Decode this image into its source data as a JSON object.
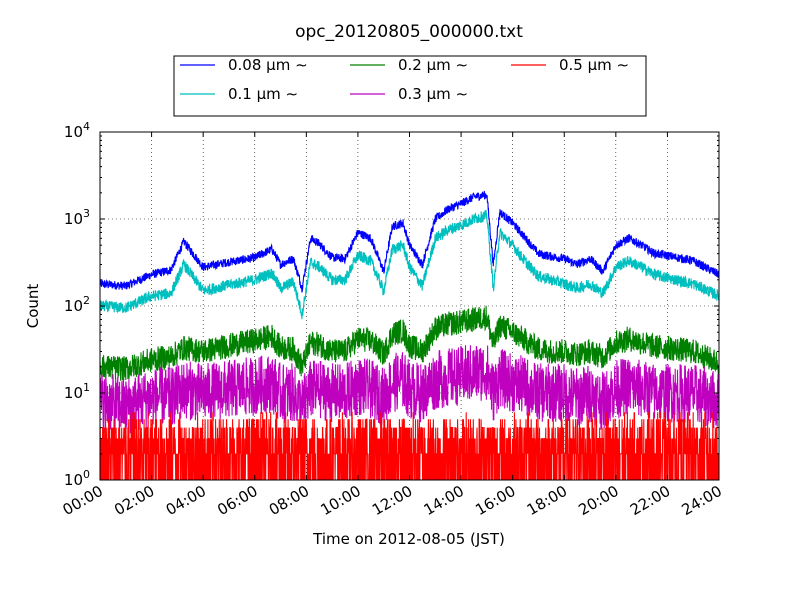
{
  "chart_data": {
    "type": "line",
    "title": "opc_20120805_000000.txt",
    "xlabel": "Time on 2012-08-05 (JST)",
    "ylabel": "Count",
    "yscale": "log",
    "ylim": [
      1,
      10000
    ],
    "xlim": [
      "00:00",
      "24:00"
    ],
    "x_ticks": [
      "00:00",
      "02:00",
      "04:00",
      "06:00",
      "08:00",
      "10:00",
      "12:00",
      "14:00",
      "16:00",
      "18:00",
      "20:00",
      "22:00",
      "24:00"
    ],
    "y_ticks": [
      {
        "base": "10",
        "exp": "0"
      },
      {
        "base": "10",
        "exp": "1"
      },
      {
        "base": "10",
        "exp": "2"
      },
      {
        "base": "10",
        "exp": "3"
      },
      {
        "base": "10",
        "exp": "4"
      }
    ],
    "grid": true,
    "legend_position": "top-center",
    "series": [
      {
        "name": "0.08 μm ∼",
        "color": "#0000ff",
        "x": [
          "00:00",
          "01:00",
          "02:00",
          "02:45",
          "03:15",
          "04:00",
          "05:00",
          "06:00",
          "06:40",
          "07:00",
          "07:30",
          "07:50",
          "08:10",
          "08:30",
          "09:00",
          "09:30",
          "10:00",
          "10:30",
          "11:00",
          "11:20",
          "11:45",
          "12:00",
          "12:30",
          "13:00",
          "13:30",
          "14:00",
          "14:30",
          "15:00",
          "15:15",
          "15:30",
          "16:00",
          "16:30",
          "17:00",
          "17:30",
          "18:00",
          "18:30",
          "19:00",
          "19:30",
          "20:00",
          "20:30",
          "21:00",
          "21:30",
          "22:00",
          "23:00",
          "24:00"
        ],
        "values": [
          180,
          170,
          230,
          260,
          550,
          280,
          320,
          360,
          450,
          300,
          350,
          160,
          600,
          520,
          360,
          350,
          700,
          600,
          250,
          820,
          900,
          500,
          300,
          1000,
          1300,
          1500,
          1800,
          1900,
          300,
          1200,
          900,
          600,
          400,
          370,
          350,
          300,
          350,
          250,
          500,
          600,
          500,
          400,
          380,
          330,
          230
        ]
      },
      {
        "name": "0.1 μm ∼",
        "color": "#00bfbf",
        "x": [
          "00:00",
          "01:00",
          "02:00",
          "02:45",
          "03:15",
          "04:00",
          "05:00",
          "06:00",
          "06:40",
          "07:00",
          "07:30",
          "07:50",
          "08:10",
          "08:30",
          "09:00",
          "09:30",
          "10:00",
          "10:30",
          "11:00",
          "11:20",
          "11:45",
          "12:00",
          "12:30",
          "13:00",
          "13:30",
          "14:00",
          "14:30",
          "15:00",
          "15:15",
          "15:30",
          "16:00",
          "16:30",
          "17:00",
          "17:30",
          "18:00",
          "18:30",
          "19:00",
          "19:30",
          "20:00",
          "20:30",
          "21:00",
          "21:30",
          "22:00",
          "23:00",
          "24:00"
        ],
        "values": [
          100,
          95,
          130,
          140,
          300,
          150,
          175,
          200,
          240,
          160,
          190,
          80,
          320,
          280,
          200,
          200,
          380,
          330,
          150,
          450,
          500,
          280,
          170,
          600,
          750,
          850,
          1000,
          1100,
          160,
          700,
          500,
          320,
          220,
          200,
          180,
          160,
          180,
          140,
          280,
          330,
          280,
          230,
          210,
          180,
          130
        ]
      },
      {
        "name": "0.2 μm ∼",
        "color": "#008000",
        "x": [
          "00:00",
          "01:00",
          "02:00",
          "02:45",
          "03:15",
          "04:00",
          "05:00",
          "06:00",
          "06:40",
          "07:00",
          "07:30",
          "07:50",
          "08:10",
          "08:30",
          "09:00",
          "09:30",
          "10:00",
          "10:30",
          "11:00",
          "11:20",
          "11:45",
          "12:00",
          "12:30",
          "13:00",
          "13:30",
          "14:00",
          "14:30",
          "15:00",
          "15:15",
          "15:30",
          "16:00",
          "16:30",
          "17:00",
          "17:30",
          "18:00",
          "18:30",
          "19:00",
          "19:30",
          "20:00",
          "20:30",
          "21:00",
          "21:30",
          "22:00",
          "23:00",
          "24:00"
        ],
        "values": [
          20,
          19,
          24,
          26,
          33,
          30,
          35,
          40,
          45,
          33,
          32,
          20,
          38,
          36,
          30,
          30,
          42,
          40,
          28,
          48,
          52,
          35,
          30,
          55,
          62,
          65,
          70,
          75,
          35,
          60,
          50,
          40,
          32,
          30,
          30,
          28,
          30,
          26,
          38,
          42,
          38,
          34,
          33,
          30,
          22
        ]
      },
      {
        "name": "0.3 μm ∼",
        "color": "#bf00bf",
        "x": [
          "00:00",
          "01:00",
          "02:00",
          "02:45",
          "03:15",
          "04:00",
          "05:00",
          "06:00",
          "06:40",
          "07:00",
          "07:30",
          "07:50",
          "08:10",
          "08:30",
          "09:00",
          "09:30",
          "10:00",
          "10:30",
          "11:00",
          "11:20",
          "11:45",
          "12:00",
          "12:30",
          "13:00",
          "13:30",
          "14:00",
          "14:30",
          "15:00",
          "15:15",
          "15:30",
          "16:00",
          "16:30",
          "17:00",
          "17:30",
          "18:00",
          "18:30",
          "19:00",
          "19:30",
          "20:00",
          "20:30",
          "21:00",
          "21:30",
          "22:00",
          "23:00",
          "24:00"
        ],
        "values": [
          8,
          7,
          9,
          9,
          11,
          10,
          11,
          12,
          13,
          10,
          10,
          7,
          11,
          11,
          10,
          10,
          12,
          11,
          9,
          13,
          14,
          11,
          10,
          14,
          15,
          16,
          17,
          18,
          10,
          15,
          13,
          12,
          10,
          10,
          10,
          9,
          10,
          8,
          11,
          12,
          11,
          10,
          10,
          10,
          8
        ]
      },
      {
        "name": "0.5 μm ∼",
        "color": "#ff0000",
        "x": [
          "00:00",
          "01:00",
          "02:00",
          "04:00",
          "06:00",
          "08:00",
          "10:00",
          "12:00",
          "14:00",
          "16:00",
          "18:00",
          "20:00",
          "22:00",
          "24:00"
        ],
        "values": [
          2,
          2,
          2,
          2,
          2,
          2,
          2,
          2,
          3,
          2,
          2,
          2,
          2,
          2
        ]
      }
    ]
  }
}
